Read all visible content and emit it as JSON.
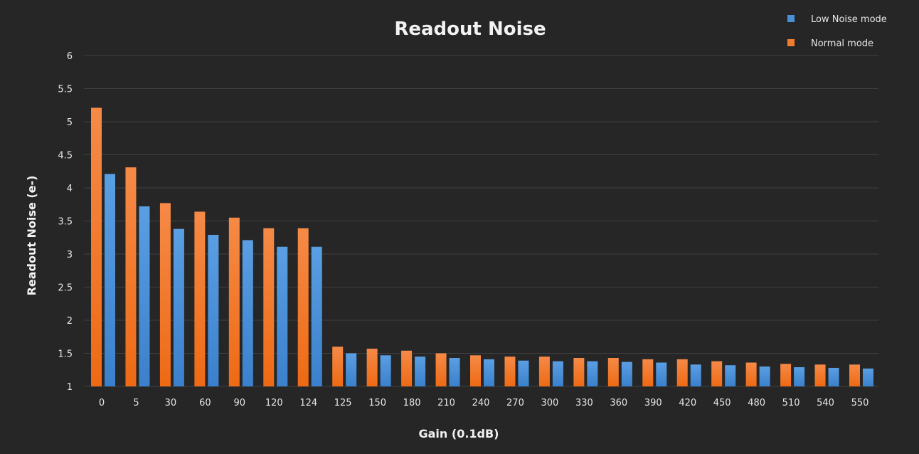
{
  "chart_data": {
    "type": "bar",
    "title": "Readout Noise",
    "xlabel": "Gain (0.1dB)",
    "ylabel": "Readout Noise (e-)",
    "ylim": [
      1,
      6
    ],
    "yticks": [
      "1",
      "1.5",
      "2",
      "2.5",
      "3",
      "3.5",
      "4",
      "4.5",
      "5",
      "5.5",
      "6"
    ],
    "grid": true,
    "legend_position": "top-right",
    "categories": [
      "0",
      "5",
      "30",
      "60",
      "90",
      "120",
      "124",
      "125",
      "150",
      "180",
      "210",
      "240",
      "270",
      "300",
      "330",
      "360",
      "390",
      "420",
      "450",
      "480",
      "510",
      "540",
      "550"
    ],
    "legend": [
      {
        "name": "Low Noise mode",
        "color": "#4a90d9"
      },
      {
        "name": "Normal mode",
        "color": "#f27c2e"
      }
    ],
    "series": [
      {
        "name": "Normal mode",
        "color": "#f27c2e",
        "values": [
          5.21,
          4.31,
          3.77,
          3.64,
          3.55,
          3.39,
          3.39,
          1.6,
          1.57,
          1.54,
          1.5,
          1.47,
          1.45,
          1.45,
          1.43,
          1.43,
          1.41,
          1.41,
          1.38,
          1.36,
          1.34,
          1.33,
          1.33
        ]
      },
      {
        "name": "Low Noise mode",
        "color": "#4a90d9",
        "values": [
          4.21,
          3.72,
          3.38,
          3.29,
          3.21,
          3.11,
          3.11,
          1.5,
          1.47,
          1.45,
          1.43,
          1.41,
          1.39,
          1.38,
          1.38,
          1.37,
          1.36,
          1.33,
          1.32,
          1.3,
          1.29,
          1.28,
          1.27
        ]
      }
    ]
  }
}
